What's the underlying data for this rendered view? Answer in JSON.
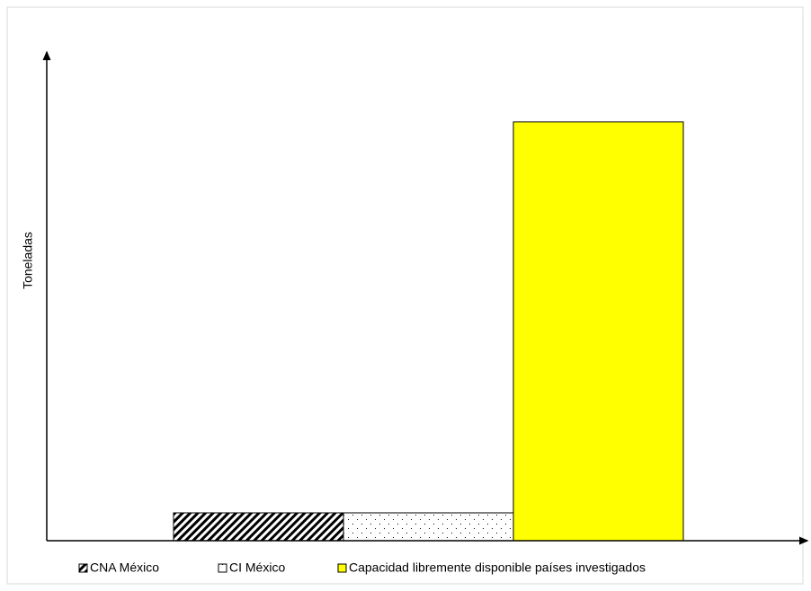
{
  "chart_data": {
    "type": "bar",
    "y_label": "Toneladas",
    "categories": [
      null
    ],
    "series": [
      {
        "name": "CNA México",
        "color": "#000000",
        "pattern": "hatch",
        "values": [
          5.7
        ]
      },
      {
        "name": "CI México",
        "color": "#000000",
        "pattern": "dots",
        "values": [
          5.7
        ]
      },
      {
        "name": "Capacidad libremente disponible países investigados",
        "color": "#ffff00",
        "values": [
          85.7
        ]
      }
    ],
    "ylim": [
      0,
      100
    ],
    "legend": "bottom"
  }
}
